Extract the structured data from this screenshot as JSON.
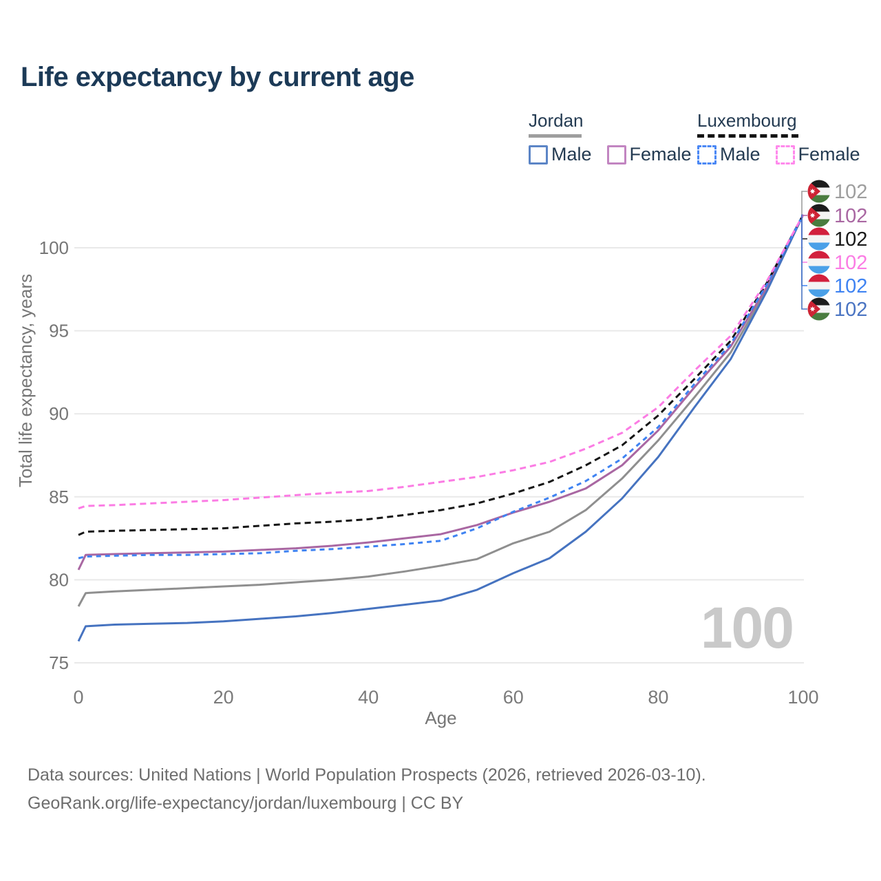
{
  "title": "Life expectancy by current age",
  "legend": {
    "groups": [
      {
        "country": "Jordan",
        "underline_style": "solid",
        "underline_color": "#9e9e9e",
        "underline_width": 77,
        "items": [
          {
            "label": "Male",
            "color": "#5c85c6",
            "dashed": false
          },
          {
            "label": "Female",
            "color": "#c285c1",
            "dashed": false
          }
        ]
      },
      {
        "country": "Luxembourg",
        "underline_style": "dashed",
        "underline_color": "#141414",
        "underline_width": 147,
        "items": [
          {
            "label": "Male",
            "color": "#4b88f5",
            "dashed": true
          },
          {
            "label": "Female",
            "color": "#ff8aec",
            "dashed": true
          }
        ]
      }
    ]
  },
  "chart_data": {
    "type": "line",
    "title": "Life expectancy by current age",
    "xlabel": "Age",
    "ylabel": "Total life expectancy, years",
    "xticks": [
      0,
      20,
      40,
      60,
      80,
      100
    ],
    "yticks": [
      75,
      80,
      85,
      90,
      95,
      100
    ],
    "xlim": [
      0,
      100
    ],
    "ylim": [
      75,
      102
    ],
    "grid": "horizontal",
    "legend_position": "top-right",
    "watermark": "100",
    "ages": [
      0,
      1,
      5,
      10,
      15,
      20,
      25,
      30,
      35,
      40,
      45,
      50,
      55,
      60,
      65,
      70,
      75,
      80,
      85,
      90,
      95,
      100
    ],
    "series": [
      {
        "id": "jordan-total",
        "name": "Jordan — Total",
        "color": "#8f8f8f",
        "dash": null,
        "values": [
          78.4,
          79.2,
          79.3,
          79.4,
          79.5,
          79.6,
          79.7,
          79.85,
          80.0,
          80.2,
          80.5,
          80.85,
          81.25,
          82.2,
          82.9,
          84.2,
          86.1,
          88.4,
          91.0,
          93.7,
          97.5,
          102
        ]
      },
      {
        "id": "jordan-female",
        "name": "Jordan — Female",
        "color": "#a967a2",
        "dash": null,
        "values": [
          80.6,
          81.5,
          81.55,
          81.6,
          81.65,
          81.7,
          81.8,
          81.9,
          82.05,
          82.25,
          82.5,
          82.75,
          83.3,
          84.05,
          84.7,
          85.5,
          86.9,
          89.0,
          91.6,
          94.05,
          97.65,
          102
        ]
      },
      {
        "id": "jordan-male",
        "name": "Jordan — Male",
        "color": "#4673c0",
        "dash": null,
        "values": [
          76.3,
          77.2,
          77.3,
          77.35,
          77.4,
          77.5,
          77.65,
          77.8,
          78.0,
          78.25,
          78.5,
          78.75,
          79.4,
          80.4,
          81.3,
          82.9,
          84.9,
          87.4,
          90.4,
          93.3,
          97.4,
          102
        ]
      },
      {
        "id": "lux-total",
        "name": "Luxembourg — Total",
        "color": "#161616",
        "dash": "9 6",
        "values": [
          82.7,
          82.9,
          82.95,
          83.0,
          83.05,
          83.1,
          83.25,
          83.4,
          83.5,
          83.65,
          83.9,
          84.2,
          84.6,
          85.2,
          85.9,
          86.9,
          88.1,
          89.9,
          92.1,
          94.4,
          97.9,
          102
        ]
      },
      {
        "id": "lux-male",
        "name": "Luxembourg — Male",
        "color": "#3f83f2",
        "dash": "7 6",
        "values": [
          81.3,
          81.4,
          81.45,
          81.5,
          81.5,
          81.55,
          81.6,
          81.75,
          81.85,
          82.0,
          82.15,
          82.35,
          83.1,
          84.1,
          84.95,
          85.95,
          87.3,
          89.2,
          91.8,
          94.2,
          97.8,
          102
        ]
      },
      {
        "id": "lux-female",
        "name": "Luxembourg — Female",
        "color": "#fb7ce4",
        "dash": "9 6",
        "values": [
          84.3,
          84.45,
          84.5,
          84.6,
          84.7,
          84.8,
          84.95,
          85.1,
          85.25,
          85.35,
          85.6,
          85.9,
          86.2,
          86.6,
          87.1,
          87.9,
          88.85,
          90.4,
          92.6,
          94.7,
          98.0,
          102
        ]
      }
    ],
    "end_labels": [
      {
        "value": "102",
        "flag": "jordan",
        "color": "#9e9e9e"
      },
      {
        "value": "102",
        "flag": "jordan",
        "color": "#a967a2"
      },
      {
        "value": "102",
        "flag": "luxembourg",
        "color": "#1a1a1a"
      },
      {
        "value": "102",
        "flag": "luxembourg",
        "color": "#fb7ce4"
      },
      {
        "value": "102",
        "flag": "luxembourg",
        "color": "#3f83f2"
      },
      {
        "value": "102",
        "flag": "jordan",
        "color": "#4a74c2"
      }
    ]
  },
  "footer": {
    "line1": "Data sources: United Nations | World Population Prospects (2026, retrieved 2026-03-10).",
    "line2": "GeoRank.org/life-expectancy/jordan/luxembourg | CC BY"
  }
}
